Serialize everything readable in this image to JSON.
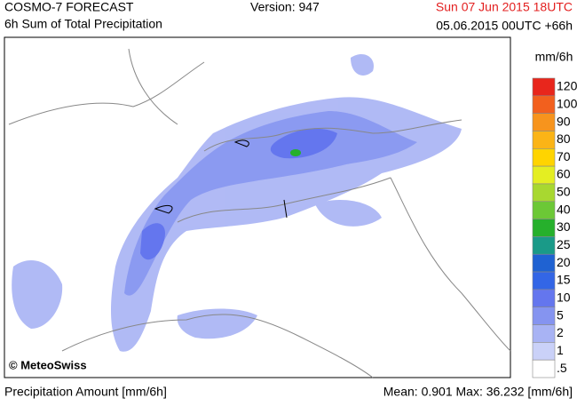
{
  "header": {
    "title": "COSMO-7 FORECAST",
    "subtitle": "6h Sum of Total Precipitation",
    "version": "Version: 947",
    "valid_time": "Sun 07 Jun 2015 18UTC",
    "run_time": "05.06.2015 00UTC +66h"
  },
  "map": {
    "credit": "© MeteoSwiss"
  },
  "legend": {
    "unit": "mm/6h",
    "items": [
      {
        "label": "120",
        "color": "#e8261c"
      },
      {
        "label": "100",
        "color": "#f2601e"
      },
      {
        "label": "90",
        "color": "#f7941d"
      },
      {
        "label": "80",
        "color": "#fbb416"
      },
      {
        "label": "70",
        "color": "#ffd400"
      },
      {
        "label": "60",
        "color": "#e4ee22"
      },
      {
        "label": "50",
        "color": "#a8d830"
      },
      {
        "label": "40",
        "color": "#6cc836"
      },
      {
        "label": "30",
        "color": "#26b02c"
      },
      {
        "label": "25",
        "color": "#1a9a88"
      },
      {
        "label": "20",
        "color": "#1f62d2"
      },
      {
        "label": "15",
        "color": "#3366e6"
      },
      {
        "label": "10",
        "color": "#6476ee"
      },
      {
        "label": "5",
        "color": "#8594f0"
      },
      {
        "label": "2",
        "color": "#a8b3f4"
      },
      {
        "label": "1",
        "color": "#cad1f8"
      },
      {
        "label": ".5",
        "color": "#ffffff"
      }
    ]
  },
  "footer": {
    "left": "Precipitation Amount [mm/6h]",
    "right": "Mean:  0.901 Max:  36.232 [mm/6h]"
  }
}
